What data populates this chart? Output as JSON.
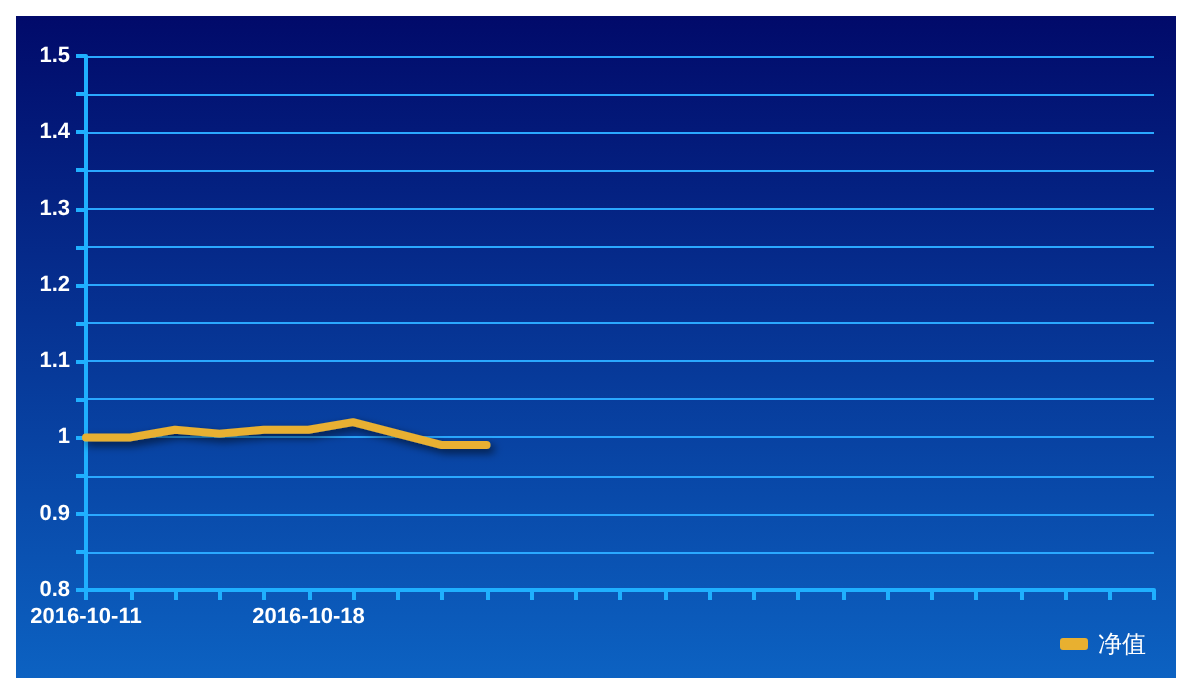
{
  "chart_data": {
    "type": "line",
    "categories": [
      "2016-10-11",
      null,
      null,
      null,
      null,
      "2016-10-18",
      null,
      null,
      null,
      null,
      null,
      null,
      null,
      null,
      null,
      null,
      null,
      null,
      null,
      null,
      null,
      null,
      null,
      null,
      null
    ],
    "series": [
      {
        "name": "净值",
        "color": "#e8b030",
        "values": [
          1.0,
          1.0,
          1.01,
          1.005,
          1.01,
          1.01,
          1.02,
          1.005,
          0.99,
          0.99,
          null,
          null,
          null,
          null,
          null,
          null,
          null,
          null,
          null,
          null,
          null,
          null,
          null,
          null,
          null
        ]
      }
    ],
    "ylim": [
      0.8,
      1.5
    ],
    "yticks": [
      0.8,
      {
        "value": 0.85,
        "label": null
      },
      0.9,
      {
        "value": 0.95,
        "label": null
      },
      1,
      {
        "value": 1.05,
        "label": null
      },
      1.1,
      {
        "value": 1.15,
        "label": null
      },
      1.2,
      {
        "value": 1.25,
        "label": null
      },
      1.3,
      {
        "value": 1.35,
        "label": null
      },
      1.4,
      {
        "value": 1.45,
        "label": null
      },
      1.5
    ],
    "grid": "y",
    "legend": "bottom right",
    "marker": "none",
    "line_style": "solid"
  }
}
